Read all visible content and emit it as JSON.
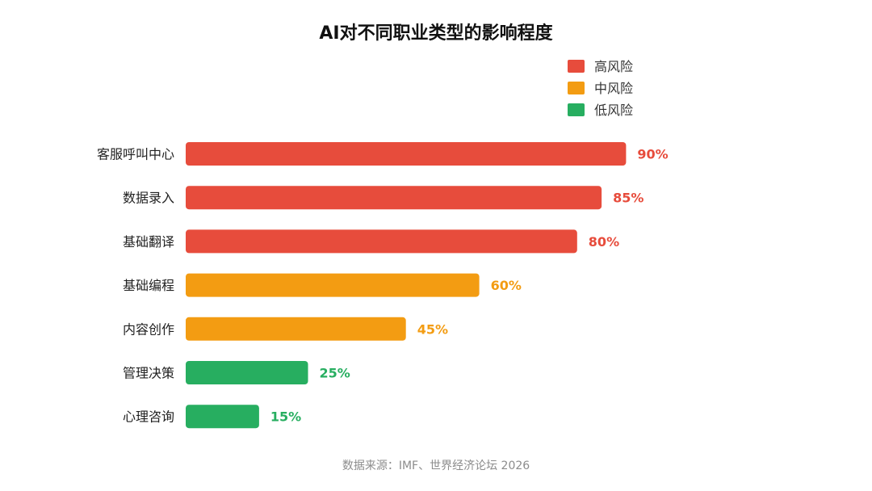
{
  "chart_data": {
    "type": "bar",
    "orientation": "horizontal",
    "title": "AI对不同职业类型的影响程度",
    "categories": [
      "客服呼叫中心",
      "数据录入",
      "基础翻译",
      "基础编程",
      "内容创作",
      "管理决策",
      "心理咨询"
    ],
    "values": [
      90,
      85,
      80,
      60,
      45,
      25,
      15
    ],
    "value_labels": [
      "90%",
      "85%",
      "80%",
      "60%",
      "45%",
      "25%",
      "15%"
    ],
    "risk": [
      "high",
      "high",
      "high",
      "medium",
      "medium",
      "low",
      "low"
    ],
    "unit": "%",
    "xlim": [
      0,
      100
    ],
    "grid": false,
    "legend_position": "top-right",
    "legend": [
      {
        "key": "high",
        "label": "高风险",
        "color": "#e74c3c"
      },
      {
        "key": "medium",
        "label": "中风险",
        "color": "#f39c12"
      },
      {
        "key": "low",
        "label": "低风险",
        "color": "#27ae60"
      }
    ],
    "source": "数据来源：IMF、世界经济论坛 2026"
  }
}
